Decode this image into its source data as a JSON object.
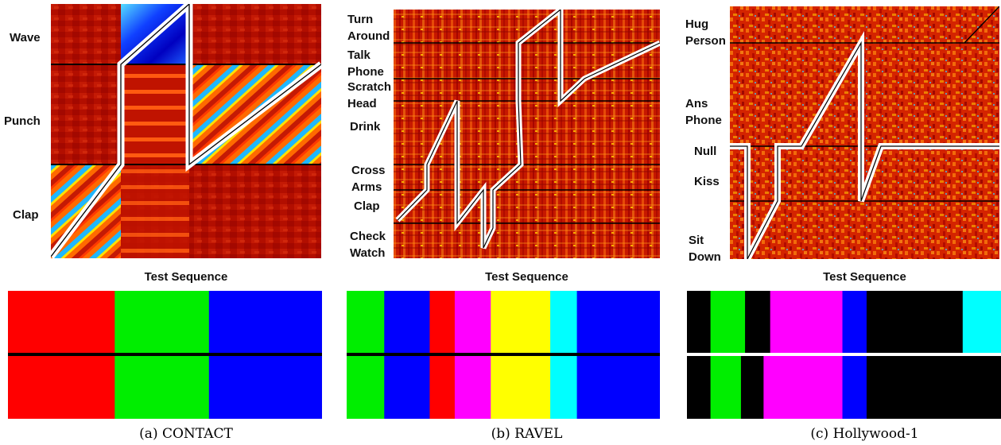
{
  "figure": {
    "panels": [
      {
        "id": "contact",
        "caption": "(a) CONTACT",
        "xlabel": "Test Sequence",
        "classes": [
          "Wave",
          "Punch",
          "Clap"
        ],
        "strips": {
          "top": [
            {
              "color": "#ff0000",
              "start": 0.0,
              "end": 0.34
            },
            {
              "color": "#00ee00",
              "start": 0.34,
              "end": 0.64
            },
            {
              "color": "#0000ff",
              "start": 0.64,
              "end": 1.0
            }
          ],
          "bottom": [
            {
              "color": "#ff0000",
              "start": 0.0,
              "end": 0.34
            },
            {
              "color": "#00ee00",
              "start": 0.34,
              "end": 0.64
            },
            {
              "color": "#0000ff",
              "start": 0.64,
              "end": 1.0
            }
          ]
        }
      },
      {
        "id": "ravel",
        "caption": "(b) RAVEL",
        "xlabel": "Test Sequence",
        "classes": [
          "Turn\nAround",
          "Talk\nPhone",
          "Scratch\nHead",
          "Drink",
          "Cross\nArms",
          "Clap",
          "Check\nWatch"
        ],
        "strips": {
          "top": [
            {
              "color": "#00ee00",
              "start": 0.0,
              "end": 0.12
            },
            {
              "color": "#0000ff",
              "start": 0.12,
              "end": 0.265
            },
            {
              "color": "#ff0000",
              "start": 0.265,
              "end": 0.345
            },
            {
              "color": "#ff00ff",
              "start": 0.345,
              "end": 0.46
            },
            {
              "color": "#ffff00",
              "start": 0.46,
              "end": 0.65
            },
            {
              "color": "#00ffff",
              "start": 0.65,
              "end": 0.735
            },
            {
              "color": "#0000ff",
              "start": 0.735,
              "end": 1.0
            }
          ],
          "bottom": [
            {
              "color": "#00ee00",
              "start": 0.0,
              "end": 0.12
            },
            {
              "color": "#0000ff",
              "start": 0.12,
              "end": 0.265
            },
            {
              "color": "#ff0000",
              "start": 0.265,
              "end": 0.345
            },
            {
              "color": "#ff00ff",
              "start": 0.345,
              "end": 0.46
            },
            {
              "color": "#ffff00",
              "start": 0.46,
              "end": 0.65
            },
            {
              "color": "#00ffff",
              "start": 0.65,
              "end": 0.735
            },
            {
              "color": "#0000ff",
              "start": 0.735,
              "end": 1.0
            }
          ]
        }
      },
      {
        "id": "hollywood",
        "caption": "(c) Hollywood-1",
        "xlabel": "Test Sequence",
        "classes": [
          "Hug\nPerson",
          "Ans\nPhone",
          "Null",
          "Kiss",
          "Sit\nDown"
        ],
        "strips": {
          "top": [
            {
              "color": "#000000",
              "start": 0.0,
              "end": 0.075
            },
            {
              "color": "#00ee00",
              "start": 0.075,
              "end": 0.185
            },
            {
              "color": "#000000",
              "start": 0.185,
              "end": 0.265
            },
            {
              "color": "#ff00ff",
              "start": 0.265,
              "end": 0.495
            },
            {
              "color": "#0000ff",
              "start": 0.495,
              "end": 0.572
            },
            {
              "color": "#000000",
              "start": 0.572,
              "end": 0.878
            },
            {
              "color": "#00ffff",
              "start": 0.878,
              "end": 1.0
            }
          ],
          "bottom": [
            {
              "color": "#000000",
              "start": 0.0,
              "end": 0.075
            },
            {
              "color": "#00ee00",
              "start": 0.075,
              "end": 0.172
            },
            {
              "color": "#000000",
              "start": 0.172,
              "end": 0.244
            },
            {
              "color": "#ff00ff",
              "start": 0.244,
              "end": 0.495
            },
            {
              "color": "#0000ff",
              "start": 0.495,
              "end": 0.572
            },
            {
              "color": "#000000",
              "start": 0.572,
              "end": 1.0
            }
          ]
        }
      }
    ]
  }
}
